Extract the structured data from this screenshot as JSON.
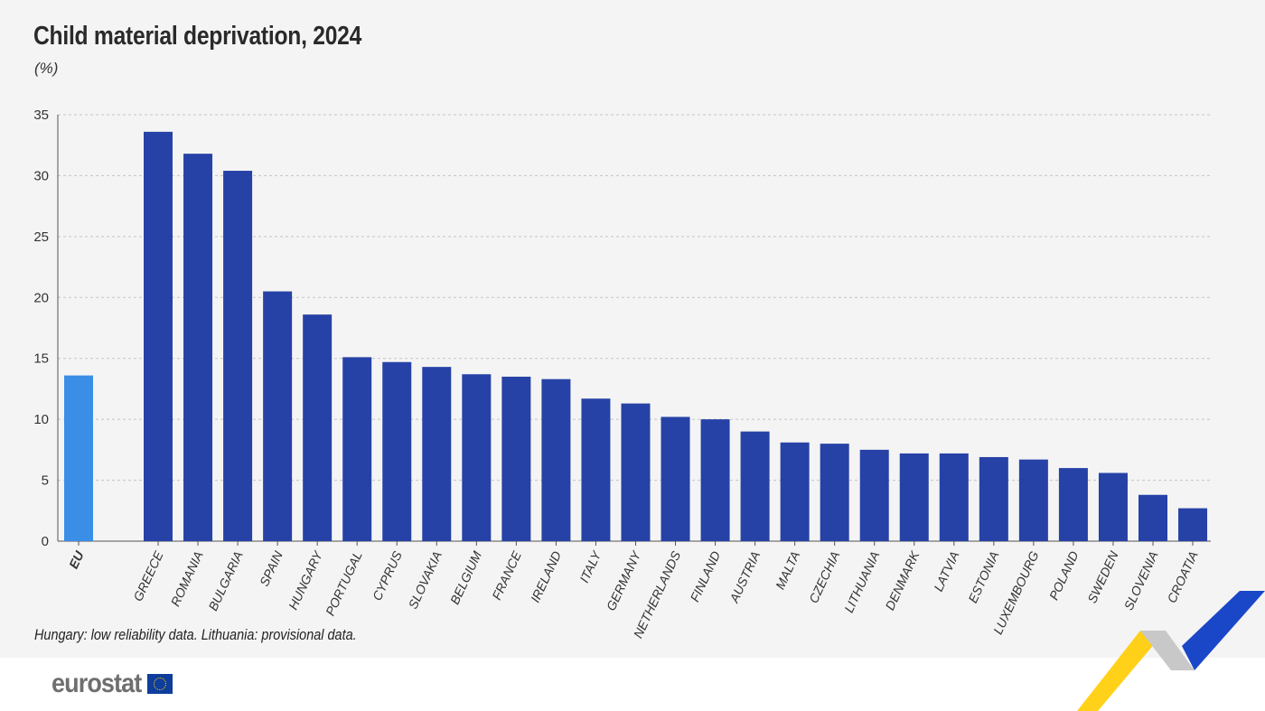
{
  "chart_data": {
    "type": "bar",
    "title": "Child material deprivation, 2024",
    "unit_label": "(%)",
    "categories": [
      "EU",
      "GREECE",
      "ROMANIA",
      "BULGARIA",
      "SPAIN",
      "HUNGARY",
      "PORTUGAL",
      "CYPRUS",
      "SLOVAKIA",
      "BELGIUM",
      "FRANCE",
      "IRELAND",
      "ITALY",
      "GERMANY",
      "NETHERLANDS",
      "FINLAND",
      "AUSTRIA",
      "MALTA",
      "CZECHIA",
      "LITHUANIA",
      "DENMARK",
      "LATVIA",
      "ESTONIA",
      "LUXEMBOURG",
      "POLAND",
      "SWEDEN",
      "SLOVENIA",
      "CROATIA"
    ],
    "values": [
      13.6,
      33.6,
      31.8,
      30.4,
      20.5,
      18.6,
      15.1,
      14.7,
      14.3,
      13.7,
      13.5,
      13.3,
      11.7,
      11.3,
      10.2,
      10.0,
      9.0,
      8.1,
      8.0,
      7.5,
      7.2,
      7.2,
      6.9,
      6.7,
      6.0,
      5.6,
      3.8,
      2.7
    ],
    "ylim": [
      0,
      35
    ],
    "yticks": [
      "0",
      "5",
      "10",
      "15",
      "20",
      "25",
      "30",
      "35"
    ],
    "grid": true,
    "colors": {
      "eu": "#3a8ee6",
      "country": "#2642a6"
    },
    "note": "Hungary: low reliability data. Lithuania: provisional data."
  },
  "footer": {
    "logo_text": "eurostat"
  }
}
